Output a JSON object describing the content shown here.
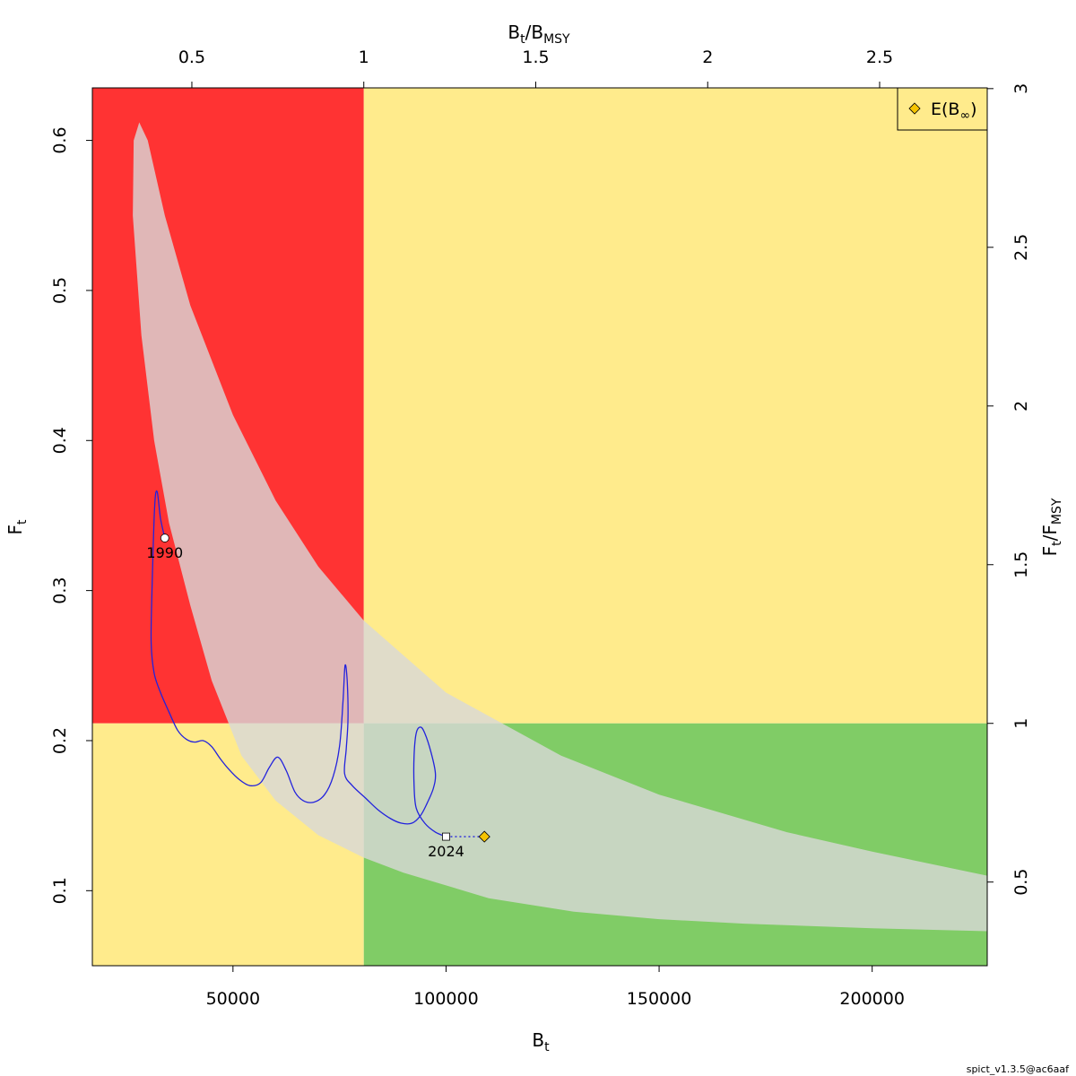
{
  "chart_data": {
    "type": "scatter",
    "title": "",
    "xlabel": {
      "main": "B",
      "sub": "t"
    },
    "ylabel": {
      "main": "F",
      "sub": "t"
    },
    "top_axis_label": {
      "num": "B",
      "num_sub": "t",
      "den": "B",
      "den_sub": "MSY"
    },
    "right_axis_label": {
      "num": "F",
      "num_sub": "t",
      "den": "F",
      "den_sub": "MSY"
    },
    "xlim": [
      17000,
      227000
    ],
    "ylim": [
      0.05,
      0.635
    ],
    "x_ticks": [
      50000,
      100000,
      150000,
      200000
    ],
    "x_tick_labels": [
      "50000",
      "100000",
      "150000",
      "200000"
    ],
    "y_ticks": [
      0.1,
      0.2,
      0.3,
      0.4,
      0.5,
      0.6
    ],
    "y_tick_labels": [
      "0.1",
      "0.2",
      "0.3",
      "0.4",
      "0.5",
      "0.6"
    ],
    "top_ticks": [
      0.5,
      1,
      1.5,
      2,
      2.5
    ],
    "top_tick_labels": [
      "0.5",
      "1",
      "1.5",
      "2",
      "2.5"
    ],
    "right_ticks": [
      0.5,
      1,
      1.5,
      2,
      2.5,
      3
    ],
    "right_tick_labels": [
      "0.5",
      "1",
      "1.5",
      "2",
      "2.5",
      "3"
    ],
    "Bmsy": 80700,
    "Fmsy": 0.2115,
    "zones": {
      "red": "#ff3333",
      "yellow": "#ffeb8c",
      "green": "#80cc66"
    },
    "confidence_region": {
      "color": "#d8d8d8",
      "opacity": 0.8,
      "upper": [
        [
          28000,
          0.612
        ],
        [
          30000,
          0.6
        ],
        [
          34000,
          0.55
        ],
        [
          40000,
          0.49
        ],
        [
          50000,
          0.417
        ],
        [
          60000,
          0.36
        ],
        [
          70000,
          0.316
        ],
        [
          80700,
          0.28
        ],
        [
          100000,
          0.232
        ],
        [
          127000,
          0.19
        ],
        [
          150000,
          0.164
        ],
        [
          180000,
          0.139
        ],
        [
          200000,
          0.126
        ],
        [
          227000,
          0.11
        ]
      ],
      "lower": [
        [
          227000,
          0.073
        ],
        [
          200000,
          0.075
        ],
        [
          170000,
          0.078
        ],
        [
          150000,
          0.081
        ],
        [
          130000,
          0.086
        ],
        [
          110000,
          0.095
        ],
        [
          90000,
          0.112
        ],
        [
          80700,
          0.122
        ],
        [
          70000,
          0.137
        ],
        [
          60000,
          0.16
        ],
        [
          52000,
          0.19
        ],
        [
          45000,
          0.24
        ],
        [
          40000,
          0.29
        ],
        [
          35000,
          0.345
        ],
        [
          31500,
          0.4
        ],
        [
          28500,
          0.47
        ],
        [
          26500,
          0.55
        ],
        [
          26700,
          0.6
        ],
        [
          28000,
          0.612
        ]
      ]
    },
    "series": [
      {
        "type": "line",
        "color": "#2222dd",
        "points": [
          [
            34000,
            0.335
          ],
          [
            33000,
            0.348
          ],
          [
            32200,
            0.366
          ],
          [
            31600,
            0.355
          ],
          [
            31000,
            0.3
          ],
          [
            30800,
            0.265
          ],
          [
            31500,
            0.245
          ],
          [
            33000,
            0.232
          ],
          [
            35000,
            0.219
          ],
          [
            37000,
            0.207
          ],
          [
            39000,
            0.201
          ],
          [
            41000,
            0.199
          ],
          [
            43000,
            0.2
          ],
          [
            45000,
            0.196
          ],
          [
            47000,
            0.188
          ],
          [
            49000,
            0.181
          ],
          [
            51500,
            0.174
          ],
          [
            54000,
            0.17
          ],
          [
            56500,
            0.172
          ],
          [
            58500,
            0.182
          ],
          [
            60500,
            0.189
          ],
          [
            62500,
            0.18
          ],
          [
            64500,
            0.166
          ],
          [
            66500,
            0.16
          ],
          [
            69000,
            0.159
          ],
          [
            71500,
            0.164
          ],
          [
            73500,
            0.176
          ],
          [
            75000,
            0.196
          ],
          [
            75800,
            0.225
          ],
          [
            76300,
            0.25
          ],
          [
            76800,
            0.24
          ],
          [
            77000,
            0.215
          ],
          [
            76600,
            0.195
          ],
          [
            76200,
            0.178
          ],
          [
            78000,
            0.17
          ],
          [
            81000,
            0.162
          ],
          [
            84000,
            0.154
          ],
          [
            87000,
            0.148
          ],
          [
            89500,
            0.145
          ],
          [
            92000,
            0.145
          ],
          [
            94000,
            0.15
          ],
          [
            95500,
            0.158
          ],
          [
            97000,
            0.168
          ],
          [
            97500,
            0.178
          ],
          [
            96500,
            0.192
          ],
          [
            95000,
            0.205
          ],
          [
            94000,
            0.209
          ],
          [
            93000,
            0.205
          ],
          [
            92500,
            0.19
          ],
          [
            92500,
            0.17
          ],
          [
            93000,
            0.155
          ],
          [
            95000,
            0.145
          ],
          [
            97500,
            0.139
          ],
          [
            100000,
            0.136
          ]
        ]
      }
    ],
    "start_year": "1990",
    "end_year": "2024",
    "start_point": [
      34000,
      0.335
    ],
    "end_point": [
      100000,
      0.136
    ],
    "equilibrium_point": [
      109000,
      0.136
    ],
    "equilibrium_color": "#f5c400",
    "legend": {
      "label_main": "E(B",
      "label_sub": "∞",
      "label_end": ")",
      "position": "top-right"
    }
  },
  "footer": "spict_v1.3.5@ac6aaf"
}
